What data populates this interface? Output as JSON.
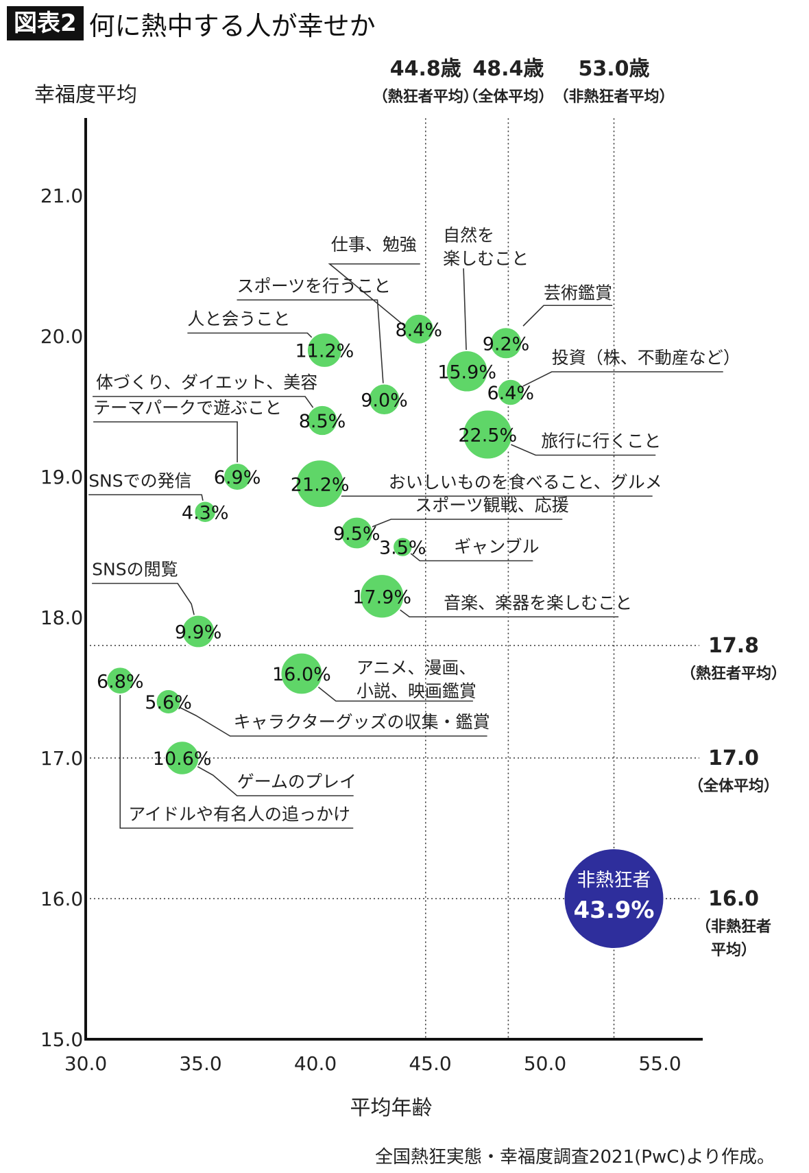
{
  "header": {
    "tag": "図表2",
    "title": "何に熱中する人が幸せか"
  },
  "colors": {
    "bubble": "#5fd668",
    "non_enthusiast": "#2e2e9c",
    "axis": "#111111"
  },
  "source": "全国熱狂実態・幸福度調査2021(PwC)より作成。",
  "chart_data": {
    "type": "scatter",
    "title": "何に熱中する人が幸せか",
    "xlabel": "平均年齢",
    "ylabel": "幸福度平均",
    "xlim": [
      30,
      57
    ],
    "ylim": [
      15,
      21.5
    ],
    "x_ticks": [
      "30.0",
      "35.0",
      "40.0",
      "45.0",
      "50.0",
      "55.0"
    ],
    "y_ticks": [
      "15.0",
      "16.0",
      "17.0",
      "18.0",
      "19.0",
      "20.0",
      "21.0"
    ],
    "grid": false,
    "reference_lines": {
      "vertical": [
        {
          "x": 44.8,
          "value": "44.8歳",
          "label": "（熱狂者平均）"
        },
        {
          "x": 48.4,
          "value": "48.4歳",
          "label": "（全体平均）"
        },
        {
          "x": 53.0,
          "value": "53.0歳",
          "label": "（非熱狂者平均）"
        }
      ],
      "horizontal": [
        {
          "y": 17.8,
          "value": "17.8",
          "label": [
            "（熱狂者平均）"
          ]
        },
        {
          "y": 17.0,
          "value": "17.0",
          "label": [
            "（全体平均）"
          ]
        },
        {
          "y": 16.0,
          "value": "16.0",
          "label": [
            "（非熱狂者",
            "平均）"
          ]
        }
      ]
    },
    "points": [
      {
        "name": "仕事、勉強",
        "x": 44.5,
        "y": 20.05,
        "share": "8.4%",
        "size": 8.4
      },
      {
        "name": "自然を楽しむこと",
        "x": 46.6,
        "y": 19.75,
        "share": "15.9%",
        "size": 15.9
      },
      {
        "name": "芸術鑑賞",
        "x": 48.3,
        "y": 19.95,
        "share": "9.2%",
        "size": 9.2
      },
      {
        "name": "投資（株、不動産など）",
        "x": 48.5,
        "y": 19.6,
        "share": "6.4%",
        "size": 6.4
      },
      {
        "name": "旅行に行くこと",
        "x": 47.5,
        "y": 19.3,
        "share": "22.5%",
        "size": 22.5
      },
      {
        "name": "人と会うこと",
        "x": 40.4,
        "y": 19.9,
        "share": "11.2%",
        "size": 11.2
      },
      {
        "name": "スポーツを行うこと",
        "x": 43.0,
        "y": 19.55,
        "share": "9.0%",
        "size": 9.0
      },
      {
        "name": "体づくり、ダイエット、美容",
        "x": 40.3,
        "y": 19.4,
        "share": "8.5%",
        "size": 8.5
      },
      {
        "name": "テーマパークで遊ぶこと",
        "x": 36.6,
        "y": 19.0,
        "share": "6.9%",
        "size": 6.9
      },
      {
        "name": "SNSでの発信",
        "x": 35.2,
        "y": 18.75,
        "share": "4.3%",
        "size": 4.3
      },
      {
        "name": "おいしいものを食べること、グルメ",
        "x": 40.2,
        "y": 18.95,
        "share": "21.2%",
        "size": 21.2
      },
      {
        "name": "スポーツ観戦、応援",
        "x": 41.8,
        "y": 18.6,
        "share": "9.5%",
        "size": 9.5
      },
      {
        "name": "ギャンブル",
        "x": 43.8,
        "y": 18.5,
        "share": "3.5%",
        "size": 3.5
      },
      {
        "name": "音楽、楽器を楽しむこと",
        "x": 42.9,
        "y": 18.15,
        "share": "17.9%",
        "size": 17.9
      },
      {
        "name": "SNSの閲覧",
        "x": 34.9,
        "y": 17.9,
        "share": "9.9%",
        "size": 9.9
      },
      {
        "name": "アニメ、漫画、小説、映画鑑賞",
        "x": 39.4,
        "y": 17.6,
        "share": "16.0%",
        "size": 16.0
      },
      {
        "name": "アイドルや有名人の追っかけ",
        "x": 31.5,
        "y": 17.55,
        "share": "6.8%",
        "size": 6.8
      },
      {
        "name": "キャラクターグッズの収集・鑑賞",
        "x": 33.6,
        "y": 17.4,
        "share": "5.6%",
        "size": 5.6
      },
      {
        "name": "ゲームのプレイ",
        "x": 34.2,
        "y": 17.0,
        "share": "10.6%",
        "size": 10.6
      }
    ],
    "non_enthusiast": {
      "name": "非熱狂者",
      "x": 53.0,
      "y": 16.0,
      "share": "43.9%",
      "size": 43.9
    }
  }
}
